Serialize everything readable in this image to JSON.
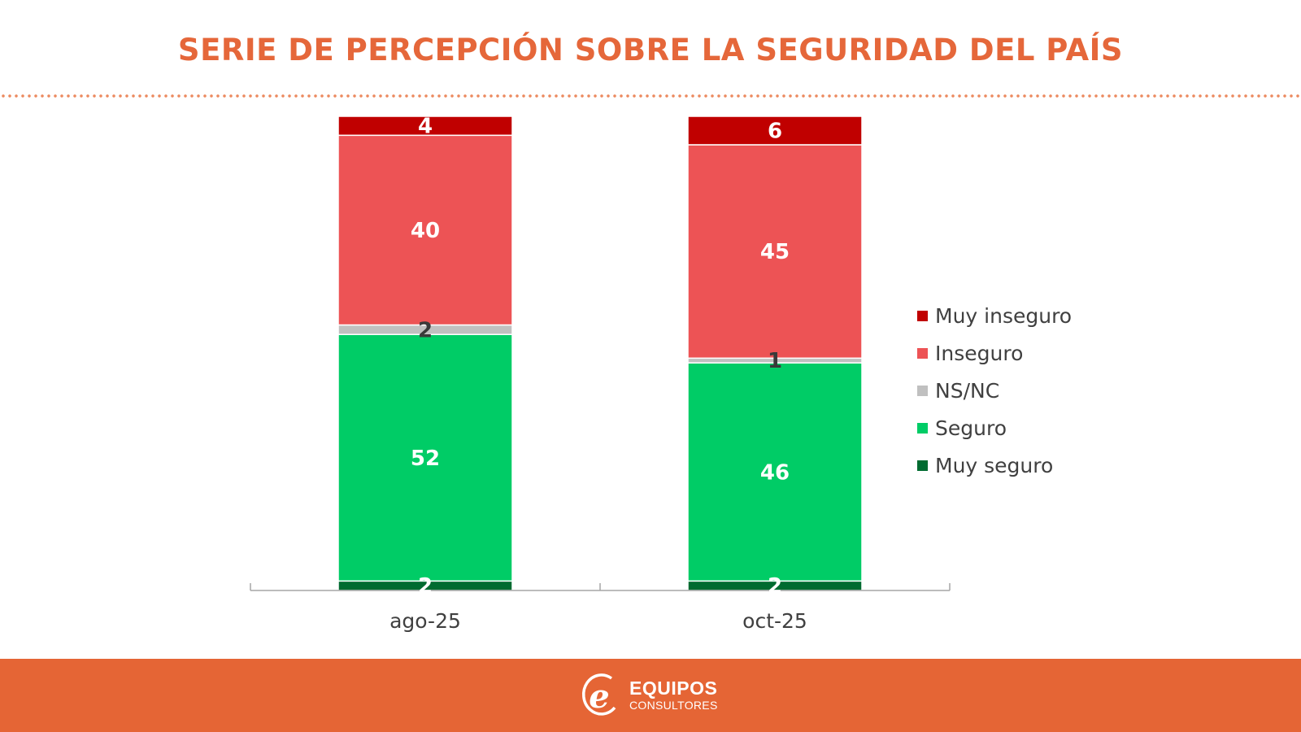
{
  "header": {
    "title": "SERIE DE PERCEPCIÓN SOBRE LA SEGURIDAD DEL PAÍS"
  },
  "chart_data": {
    "type": "bar",
    "stacked": true,
    "title": "SERIE DE PERCEPCIÓN SOBRE LA SEGURIDAD DEL PAÍS",
    "xlabel": "",
    "ylabel": "",
    "ylim": [
      0,
      100
    ],
    "grid": false,
    "legend_position": "right",
    "categories": [
      "ago-25",
      "oct-25"
    ],
    "series": [
      {
        "name": "Muy seguro",
        "color": "#006b30",
        "label_color": "#ffffff",
        "values": [
          2,
          2
        ]
      },
      {
        "name": "Seguro",
        "color": "#00cc66",
        "label_color": "#ffffff",
        "values": [
          52,
          46
        ]
      },
      {
        "name": "NS/NC",
        "color": "#c0c0c0",
        "label_color": "#3a3a3a",
        "values": [
          2,
          1
        ]
      },
      {
        "name": "Inseguro",
        "color": "#ed5355",
        "label_color": "#ffffff",
        "values": [
          40,
          45
        ]
      },
      {
        "name": "Muy inseguro",
        "color": "#c00000",
        "label_color": "#ffffff",
        "values": [
          4,
          6
        ]
      }
    ],
    "legend_order": [
      "Muy inseguro",
      "Inseguro",
      "NS/NC",
      "Seguro",
      "Muy seguro"
    ]
  },
  "footer": {
    "brand_name": "EQUIPOS",
    "brand_sub": "CONSULTORES",
    "brand_mark": "e",
    "background": "#e56535"
  }
}
